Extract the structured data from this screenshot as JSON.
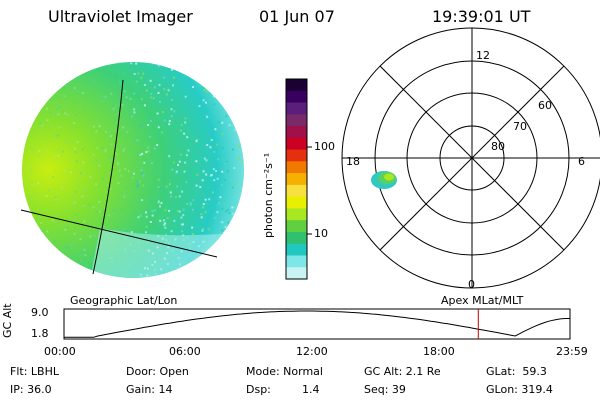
{
  "header": {
    "instrument": "Ultraviolet Imager",
    "date": "01 Jun 07",
    "time": "19:39:01 UT"
  },
  "colorbar": {
    "unit_label": "photon cm⁻²s⁻¹",
    "ticks": [
      {
        "label": "100",
        "value": 100
      },
      {
        "label": "10",
        "value": 10
      }
    ],
    "colors": [
      "#1a0033",
      "#3a0060",
      "#5a1f7a",
      "#7a2a6a",
      "#a0104a",
      "#cc0022",
      "#e53010",
      "#f07a00",
      "#f5b000",
      "#f7e040",
      "#e8f000",
      "#a8e820",
      "#60d040",
      "#30c070",
      "#20c8c0",
      "#7de6e6",
      "#c8f4f4"
    ]
  },
  "polar": {
    "mlt_labels": {
      "top": "12",
      "left": "18",
      "right": "6",
      "bottom": "0"
    },
    "lat_labels": [
      "60",
      "70",
      "80"
    ],
    "lat_values": [
      60,
      70,
      80
    ]
  },
  "map_labels": {
    "left": "Geographic Lat/Lon",
    "right": "Apex MLat/MLT"
  },
  "altitude_plot": {
    "ylabel": "GC Alt",
    "ymax_label": "9.0",
    "ymin_label": "1.8",
    "xticks": [
      "00:00",
      "06:00",
      "12:00",
      "18:00",
      "23:59"
    ],
    "marker_time_hours": 19.65,
    "marker_color": "#c00000"
  },
  "info": {
    "filter": "Flt: LBHL",
    "ip": "IP: 36.0",
    "door": "Door: Open",
    "gain": "Gain: 14",
    "mode": "Mode: Normal",
    "dsp_label": "Dsp:",
    "dsp_value": "1.4",
    "gc_alt": "GC Alt: 2.1 Re",
    "seq": "Seq: 39",
    "glat": "GLat:  59.3",
    "glon": "GLon: 319.4"
  }
}
